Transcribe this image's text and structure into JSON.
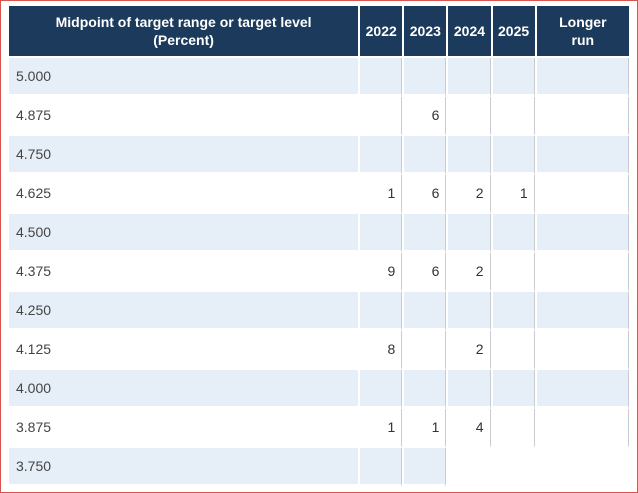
{
  "table": {
    "header": {
      "midpoint_line1": "Midpoint of target range or target level",
      "midpoint_line2": "(Percent)",
      "y2022": "2022",
      "y2023": "2023",
      "y2024": "2024",
      "y2025": "2025",
      "longer_line1": "Longer",
      "longer_line2": "run"
    },
    "rows": [
      {
        "level": "5.000",
        "v2022": "",
        "v2023": "",
        "v2024": "",
        "v2025": "",
        "longer": ""
      },
      {
        "level": "4.875",
        "v2022": "",
        "v2023": "6",
        "v2024": "",
        "v2025": "",
        "longer": ""
      },
      {
        "level": "4.750",
        "v2022": "",
        "v2023": "",
        "v2024": "",
        "v2025": "",
        "longer": ""
      },
      {
        "level": "4.625",
        "v2022": "1",
        "v2023": "6",
        "v2024": "2",
        "v2025": "1",
        "longer": ""
      },
      {
        "level": "4.500",
        "v2022": "",
        "v2023": "",
        "v2024": "",
        "v2025": "",
        "longer": ""
      },
      {
        "level": "4.375",
        "v2022": "9",
        "v2023": "6",
        "v2024": "2",
        "v2025": "",
        "longer": ""
      },
      {
        "level": "4.250",
        "v2022": "",
        "v2023": "",
        "v2024": "",
        "v2025": "",
        "longer": ""
      },
      {
        "level": "4.125",
        "v2022": "8",
        "v2023": "",
        "v2024": "2",
        "v2025": "",
        "longer": ""
      },
      {
        "level": "4.000",
        "v2022": "",
        "v2023": "",
        "v2024": "",
        "v2025": "",
        "longer": ""
      },
      {
        "level": "3.875",
        "v2022": "1",
        "v2023": "1",
        "v2024": "4",
        "v2025": "",
        "longer": ""
      },
      {
        "level": "3.750",
        "v2022": "",
        "v2023": "",
        "v2024": "",
        "v2025": "",
        "longer": ""
      }
    ]
  }
}
